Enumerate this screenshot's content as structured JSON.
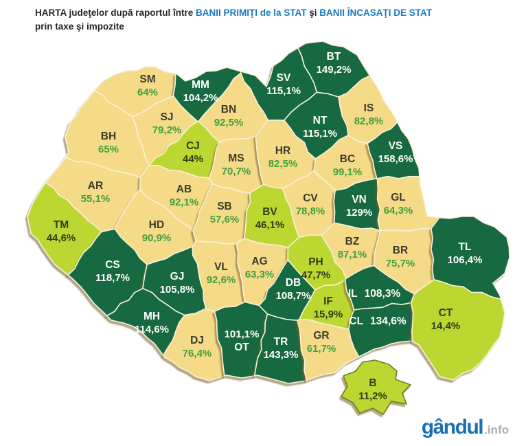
{
  "title": {
    "line1_segments": [
      {
        "text": "HARTA judeţelor după raportul între ",
        "color": "dark"
      },
      {
        "text": "BANII PRIMIŢI de la STAT",
        "color": "blue"
      },
      {
        "text": " şi ",
        "color": "dark"
      },
      {
        "text": "BANII ÎNCASAŢI DE STAT",
        "color": "blue"
      }
    ],
    "line2": "prin taxe şi impozite"
  },
  "logo": {
    "name": "gândul",
    "suffix": ".info"
  },
  "theme": {
    "title_dark": "#23252c",
    "title_blue": "#1878be",
    "logo_blue": "#1c6fb4",
    "logo_gray": "#aeaeae",
    "border": "#f8f1d6",
    "shadow": "#7a5b26"
  },
  "legend_levels": {
    "dark": {
      "fill": "#13693f",
      "code_text": "#ffffff",
      "value_text": "#ffffff",
      "meaning": "over 100%"
    },
    "tan": {
      "fill": "#f5da88",
      "code_text": "#3b3a2c",
      "value_text": "#3fa03c",
      "meaning": "mid range"
    },
    "bright": {
      "fill": "#bcd733",
      "code_text": "#2c3e14",
      "value_text": "#2c3e14",
      "meaning": "under 50%"
    }
  },
  "map": {
    "counties": [
      {
        "code": "SM",
        "value": "64%",
        "level": "tan"
      },
      {
        "code": "MM",
        "value": "104,2%",
        "level": "dark"
      },
      {
        "code": "BT",
        "value": "149,2%",
        "level": "dark"
      },
      {
        "code": "SV",
        "value": "115,1%",
        "level": "dark"
      },
      {
        "code": "IS",
        "value": "82,8%",
        "level": "tan"
      },
      {
        "code": "SJ",
        "value": "79,2%",
        "level": "tan"
      },
      {
        "code": "BN",
        "value": "92,5%",
        "level": "tan"
      },
      {
        "code": "NT",
        "value": "115,1%",
        "level": "dark"
      },
      {
        "code": "BH",
        "value": "65%",
        "level": "tan"
      },
      {
        "code": "CJ",
        "value": "44%",
        "level": "bright"
      },
      {
        "code": "MS",
        "value": "70,7%",
        "level": "tan"
      },
      {
        "code": "HR",
        "value": "82,5%",
        "level": "tan"
      },
      {
        "code": "BC",
        "value": "99,1%",
        "level": "tan"
      },
      {
        "code": "VS",
        "value": "158,6%",
        "level": "dark"
      },
      {
        "code": "AR",
        "value": "55,1%",
        "level": "tan"
      },
      {
        "code": "AB",
        "value": "92,1%",
        "level": "tan"
      },
      {
        "code": "CV",
        "value": "78,8%",
        "level": "tan"
      },
      {
        "code": "VN",
        "value": "129%",
        "level": "dark"
      },
      {
        "code": "GL",
        "value": "64,3%",
        "level": "tan"
      },
      {
        "code": "TM",
        "value": "44,6%",
        "level": "bright"
      },
      {
        "code": "HD",
        "value": "90,9%",
        "level": "tan"
      },
      {
        "code": "SB",
        "value": "57,6%",
        "level": "tan"
      },
      {
        "code": "BV",
        "value": "46,1%",
        "level": "bright"
      },
      {
        "code": "BZ",
        "value": "87,1%",
        "level": "tan"
      },
      {
        "code": "BR",
        "value": "75,7%",
        "level": "tan"
      },
      {
        "code": "TL",
        "value": "106,4%",
        "level": "dark"
      },
      {
        "code": "CS",
        "value": "118,7%",
        "level": "dark"
      },
      {
        "code": "VL",
        "value": "92,6%",
        "level": "tan"
      },
      {
        "code": "AG",
        "value": "63,3%",
        "level": "tan"
      },
      {
        "code": "PH",
        "value": "47,7%",
        "level": "bright"
      },
      {
        "code": "GJ",
        "value": "105,8%",
        "level": "dark"
      },
      {
        "code": "DB",
        "value": "108,7%",
        "level": "dark"
      },
      {
        "code": "IF",
        "value": "15,9%",
        "level": "bright"
      },
      {
        "code": "IL",
        "value": "108,3%",
        "level": "dark"
      },
      {
        "code": "CL",
        "value": "134,6%",
        "level": "dark"
      },
      {
        "code": "MH",
        "value": "114,6%",
        "level": "dark"
      },
      {
        "code": "CT",
        "value": "14,4%",
        "level": "bright"
      },
      {
        "code": "DJ",
        "value": "76,4%",
        "level": "tan"
      },
      {
        "code": "OT",
        "value": "101,1%",
        "level": "dark"
      },
      {
        "code": "TR",
        "value": "143,3%",
        "level": "dark"
      },
      {
        "code": "GR",
        "value": "61,7%",
        "level": "tan"
      },
      {
        "code": "B",
        "value": "11,2%",
        "level": "bright"
      }
    ]
  }
}
